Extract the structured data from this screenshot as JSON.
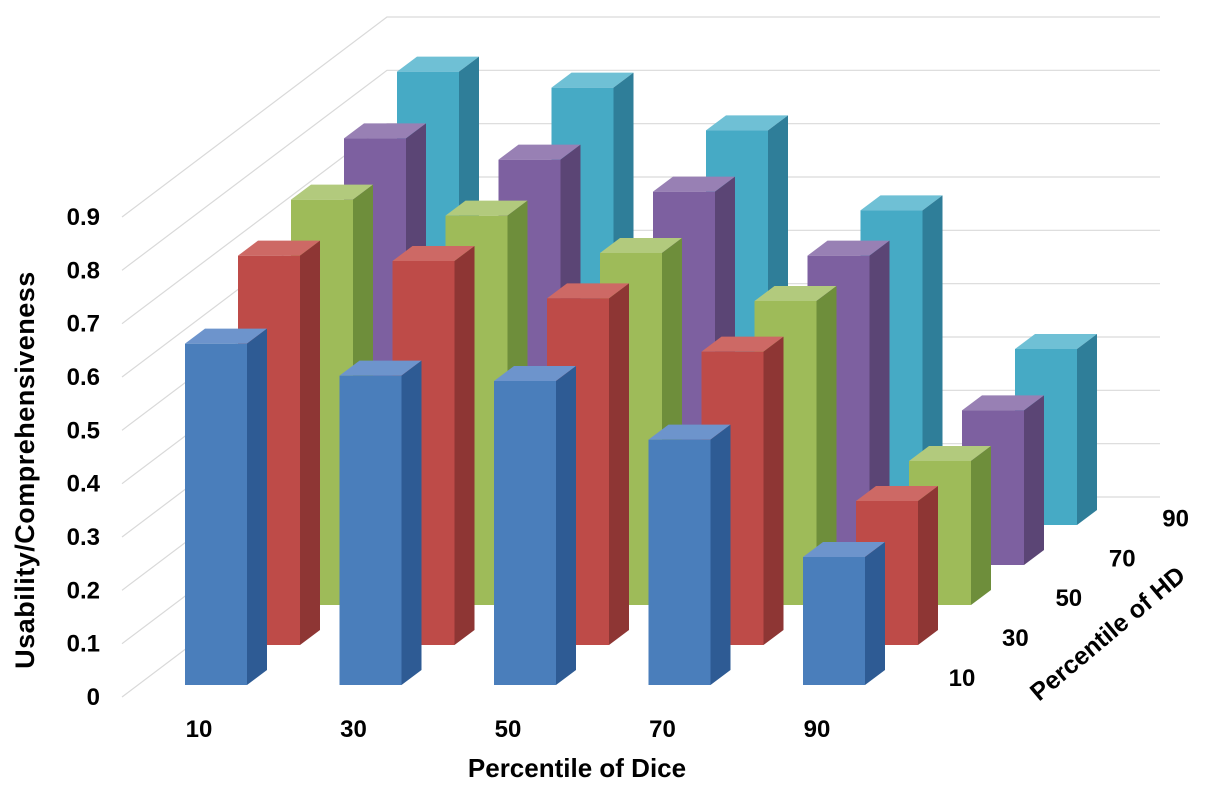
{
  "chart_data": {
    "type": "bar",
    "subtype": "3d-column",
    "title": "",
    "xlabel": "Percentile of Dice",
    "ylabel": "Usability/Comprehensiveness",
    "zlabel": "Percentile of HD",
    "categories": [
      "10",
      "30",
      "50",
      "70",
      "90"
    ],
    "depth_categories": [
      "10",
      "30",
      "50",
      "70",
      "90"
    ],
    "ylim": [
      0,
      0.9
    ],
    "ytick_step": 0.1,
    "grid": true,
    "legend_position": "none",
    "background_color": "#FFFFFF",
    "gridline_color": "#D9D9D9",
    "text_color": "#000000",
    "series": [
      {
        "name": "10",
        "color_front": "#4A7EBB",
        "color_top": "#6D94CC",
        "color_side": "#2E5B94",
        "values": [
          0.64,
          0.58,
          0.57,
          0.46,
          0.24
        ]
      },
      {
        "name": "30",
        "color_front": "#BE4B48",
        "color_top": "#CD6965",
        "color_side": "#8E3634",
        "values": [
          0.73,
          0.72,
          0.65,
          0.55,
          0.27
        ]
      },
      {
        "name": "50",
        "color_front": "#9EBB59",
        "color_top": "#B2CA7D",
        "color_side": "#6E8E3B",
        "values": [
          0.76,
          0.73,
          0.66,
          0.57,
          0.27
        ]
      },
      {
        "name": "70",
        "color_front": "#7D60A0",
        "color_top": "#9880B4",
        "color_side": "#5B4575",
        "values": [
          0.8,
          0.76,
          0.7,
          0.58,
          0.29
        ]
      },
      {
        "name": "90",
        "color_front": "#46AAC5",
        "color_top": "#6FC0D5",
        "color_side": "#2F7E99",
        "values": [
          0.85,
          0.82,
          0.74,
          0.59,
          0.33
        ]
      }
    ]
  }
}
